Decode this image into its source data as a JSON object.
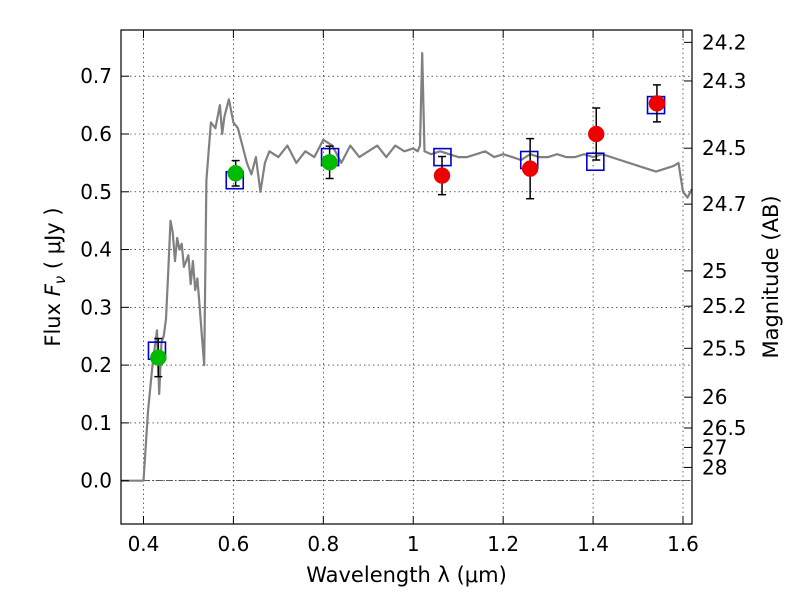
{
  "chart_data": {
    "type": "scatter",
    "xlabel": "Wavelength  λ (μm)",
    "ylabel": "Flux  F_ν  ( μJy )",
    "ylabel_right": "Magnitude (AB)",
    "xlim": [
      0.35,
      1.62
    ],
    "ylim": [
      -0.075,
      0.78
    ],
    "grid": true,
    "x_ticks": [
      0.4,
      0.6,
      0.8,
      1.0,
      1.2,
      1.4,
      1.6
    ],
    "x_tick_labels": [
      "0.4",
      "0.6",
      "0.8",
      "1",
      "1.2",
      "1.4",
      "1.6"
    ],
    "y_ticks": [
      0.0,
      0.1,
      0.2,
      0.3,
      0.4,
      0.5,
      0.6,
      0.7
    ],
    "y_tick_labels": [
      "0.0",
      "0.1",
      "0.2",
      "0.3",
      "0.4",
      "0.5",
      "0.6",
      "0.7"
    ],
    "right_ticks": [
      {
        "label": "24.2",
        "flux": 0.7586
      },
      {
        "label": "24.3",
        "flux": 0.6918
      },
      {
        "label": "24.5",
        "flux": 0.5754
      },
      {
        "label": "24.7",
        "flux": 0.4786
      },
      {
        "label": "25",
        "flux": 0.3631
      },
      {
        "label": "25.2",
        "flux": 0.302
      },
      {
        "label": "25.5",
        "flux": 0.2291
      },
      {
        "label": "26",
        "flux": 0.1445
      },
      {
        "label": "26.5",
        "flux": 0.0912
      },
      {
        "label": "27",
        "flux": 0.0575
      },
      {
        "label": "28",
        "flux": 0.0229
      }
    ],
    "series": [
      {
        "kind": "sed-line",
        "color": "#808080",
        "points": [
          [
            0.35,
            0.0
          ],
          [
            0.39,
            0.0
          ],
          [
            0.4,
            0.0
          ],
          [
            0.41,
            0.12
          ],
          [
            0.42,
            0.2
          ],
          [
            0.425,
            0.23
          ],
          [
            0.43,
            0.26
          ],
          [
            0.435,
            0.15
          ],
          [
            0.44,
            0.24
          ],
          [
            0.445,
            0.25
          ],
          [
            0.45,
            0.28
          ],
          [
            0.455,
            0.36
          ],
          [
            0.46,
            0.45
          ],
          [
            0.465,
            0.43
          ],
          [
            0.47,
            0.38
          ],
          [
            0.475,
            0.42
          ],
          [
            0.48,
            0.4
          ],
          [
            0.485,
            0.41
          ],
          [
            0.49,
            0.37
          ],
          [
            0.5,
            0.39
          ],
          [
            0.505,
            0.34
          ],
          [
            0.51,
            0.38
          ],
          [
            0.515,
            0.33
          ],
          [
            0.52,
            0.35
          ],
          [
            0.525,
            0.3
          ],
          [
            0.53,
            0.25
          ],
          [
            0.535,
            0.2
          ],
          [
            0.54,
            0.52
          ],
          [
            0.55,
            0.62
          ],
          [
            0.56,
            0.61
          ],
          [
            0.57,
            0.65
          ],
          [
            0.575,
            0.6
          ],
          [
            0.58,
            0.63
          ],
          [
            0.59,
            0.66
          ],
          [
            0.6,
            0.62
          ],
          [
            0.61,
            0.61
          ],
          [
            0.62,
            0.58
          ],
          [
            0.63,
            0.55
          ],
          [
            0.64,
            0.53
          ],
          [
            0.65,
            0.56
          ],
          [
            0.66,
            0.5
          ],
          [
            0.67,
            0.55
          ],
          [
            0.68,
            0.57
          ],
          [
            0.7,
            0.56
          ],
          [
            0.72,
            0.58
          ],
          [
            0.74,
            0.55
          ],
          [
            0.76,
            0.57
          ],
          [
            0.78,
            0.56
          ],
          [
            0.8,
            0.59
          ],
          [
            0.82,
            0.58
          ],
          [
            0.84,
            0.55
          ],
          [
            0.86,
            0.58
          ],
          [
            0.88,
            0.56
          ],
          [
            0.9,
            0.57
          ],
          [
            0.92,
            0.58
          ],
          [
            0.94,
            0.56
          ],
          [
            0.96,
            0.58
          ],
          [
            0.98,
            0.57
          ],
          [
            1.0,
            0.575
          ],
          [
            1.01,
            0.57
          ],
          [
            1.015,
            0.58
          ],
          [
            1.02,
            0.74
          ],
          [
            1.025,
            0.57
          ],
          [
            1.04,
            0.565
          ],
          [
            1.06,
            0.57
          ],
          [
            1.08,
            0.565
          ],
          [
            1.1,
            0.56
          ],
          [
            1.12,
            0.56
          ],
          [
            1.14,
            0.565
          ],
          [
            1.16,
            0.57
          ],
          [
            1.18,
            0.56
          ],
          [
            1.2,
            0.565
          ],
          [
            1.22,
            0.56
          ],
          [
            1.24,
            0.555
          ],
          [
            1.26,
            0.565
          ],
          [
            1.28,
            0.56
          ],
          [
            1.3,
            0.56
          ],
          [
            1.32,
            0.565
          ],
          [
            1.34,
            0.56
          ],
          [
            1.36,
            0.56
          ],
          [
            1.38,
            0.565
          ],
          [
            1.4,
            0.56
          ],
          [
            1.42,
            0.565
          ],
          [
            1.44,
            0.56
          ],
          [
            1.46,
            0.555
          ],
          [
            1.48,
            0.55
          ],
          [
            1.5,
            0.545
          ],
          [
            1.52,
            0.54
          ],
          [
            1.54,
            0.535
          ],
          [
            1.56,
            0.54
          ],
          [
            1.58,
            0.545
          ],
          [
            1.59,
            0.55
          ],
          [
            1.6,
            0.5
          ],
          [
            1.61,
            0.49
          ],
          [
            1.62,
            0.505
          ]
        ]
      },
      {
        "kind": "model-squares",
        "color": "#0000cc",
        "points": [
          [
            0.43,
            0.225
          ],
          [
            0.603,
            0.52
          ],
          [
            0.815,
            0.56
          ],
          [
            1.065,
            0.56
          ],
          [
            1.258,
            0.555
          ],
          [
            1.405,
            0.552
          ],
          [
            1.54,
            0.65
          ]
        ]
      },
      {
        "kind": "observed",
        "points": [
          {
            "x": 0.433,
            "y": 0.213,
            "err": 0.033,
            "color": "#00bb00"
          },
          {
            "x": 0.605,
            "y": 0.532,
            "err": 0.022,
            "color": "#00bb00"
          },
          {
            "x": 0.814,
            "y": 0.551,
            "err": 0.028,
            "color": "#00bb00"
          },
          {
            "x": 1.064,
            "y": 0.528,
            "err": 0.033,
            "color": "#ee0000"
          },
          {
            "x": 1.26,
            "y": 0.54,
            "err": 0.052,
            "color": "#ee0000"
          },
          {
            "x": 1.407,
            "y": 0.6,
            "err": 0.045,
            "color": "#ee0000"
          },
          {
            "x": 1.542,
            "y": 0.653,
            "err": 0.032,
            "color": "#ee0000"
          }
        ]
      }
    ]
  }
}
